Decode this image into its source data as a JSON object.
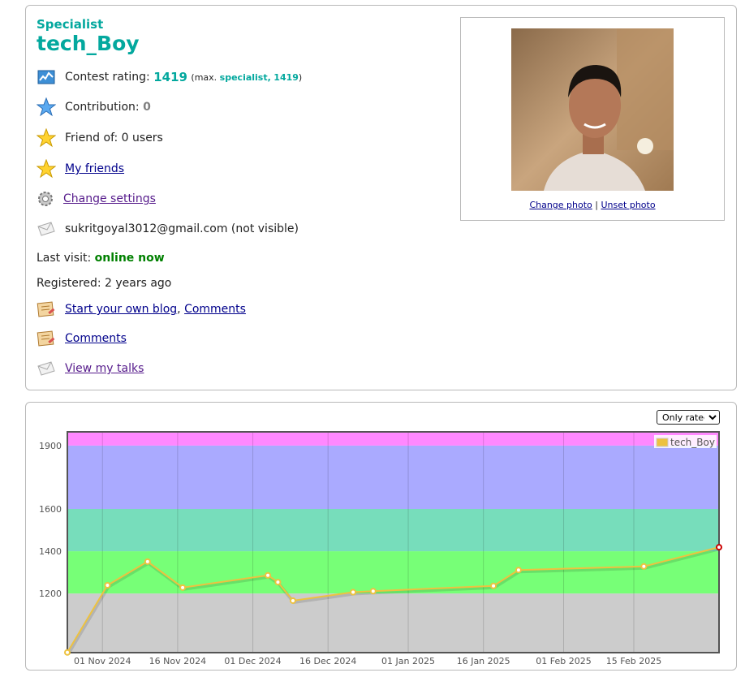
{
  "profile": {
    "rank": "Specialist",
    "handle": "tech_Boy",
    "rating_label": "Contest rating:",
    "rating_value": "1419",
    "max_open": "(max.",
    "max_rank": "specialist,",
    "max_value": "1419",
    "max_close": ")",
    "contribution_label": "Contribution:",
    "contribution_value": "0",
    "friend_of": "Friend of: 0 users",
    "my_friends": "My friends",
    "change_settings": "Change settings",
    "email": "sukritgoyal3012@gmail.com (not visible)",
    "last_visit_label": "Last visit:",
    "last_visit_value": "online now",
    "registered": "Registered: 2 years ago",
    "blog_link": "Start your own blog",
    "blog_sep": ",",
    "comments_link1": "Comments",
    "comments_link2": "Comments",
    "talks_link": "View my talks"
  },
  "photo": {
    "change": "Change photo",
    "separator": "|",
    "unset": "Unset photo"
  },
  "filter": {
    "selected": "Only rated"
  },
  "icons": [
    "rating-chart-icon",
    "blue-star-icon",
    "yellow-star-icon",
    "yellow-star-icon",
    "gear-icon",
    "envelope-icon",
    "blog-icon",
    "blog-icon",
    "envelope-icon"
  ],
  "chart_data": {
    "type": "line",
    "title": "",
    "xlabel": "",
    "ylabel": "",
    "ylim": [
      920,
      1965
    ],
    "yticks": [
      1200,
      1400,
      1600,
      1900
    ],
    "xlim": [
      "2024-10-25",
      "2025-03-04"
    ],
    "xticks": [
      "01 Nov 2024",
      "16 Nov 2024",
      "01 Dec 2024",
      "16 Dec 2024",
      "01 Jan 2025",
      "16 Jan 2025",
      "01 Feb 2025",
      "15 Feb 2025"
    ],
    "xtick_dates": [
      "2024-11-01",
      "2024-11-16",
      "2024-12-01",
      "2024-12-16",
      "2025-01-01",
      "2025-01-16",
      "2025-02-01",
      "2025-02-15"
    ],
    "bands": [
      {
        "from": 920,
        "to": 1200,
        "color": "#cccccc"
      },
      {
        "from": 1200,
        "to": 1400,
        "color": "#77ff77"
      },
      {
        "from": 1400,
        "to": 1600,
        "color": "#77ddbb"
      },
      {
        "from": 1600,
        "to": 1900,
        "color": "#aaaaff"
      },
      {
        "from": 1900,
        "to": 1965,
        "color": "#ff88ff"
      }
    ],
    "legend": "top-right",
    "series": [
      {
        "name": "tech_Boy",
        "color": "#edc240",
        "x": [
          "2024-10-25",
          "2024-11-02",
          "2024-11-10",
          "2024-11-17",
          "2024-12-04",
          "2024-12-06",
          "2024-12-09",
          "2024-12-21",
          "2024-12-25",
          "2025-01-18",
          "2025-01-23",
          "2025-02-17",
          "2025-03-04"
        ],
        "values": [
          921,
          1239,
          1351,
          1228,
          1286,
          1254,
          1166,
          1206,
          1211,
          1236,
          1311,
          1328,
          1419
        ]
      }
    ]
  }
}
